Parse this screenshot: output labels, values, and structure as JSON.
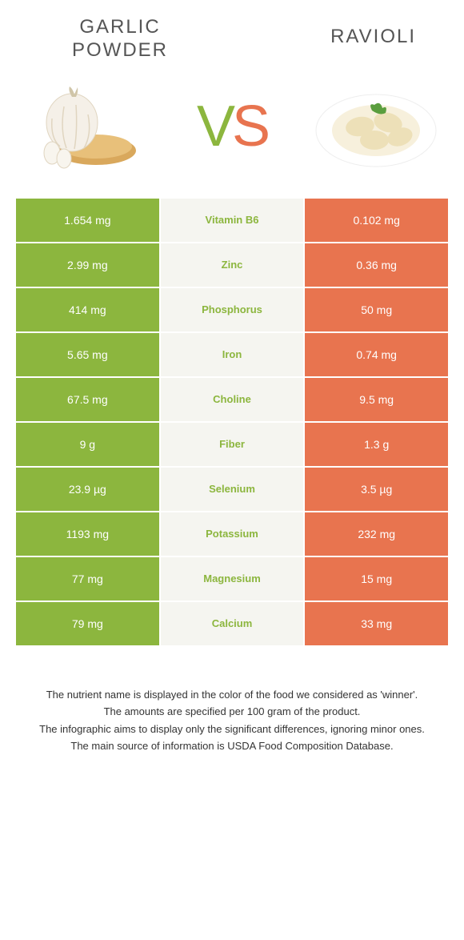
{
  "header": {
    "left_title": "Garlic powder",
    "right_title": "Ravioli",
    "vs_v": "V",
    "vs_s": "S"
  },
  "colors": {
    "left": "#8cb63e",
    "right": "#e8744f",
    "center_bg": "#f5f5f0",
    "text": "#333333"
  },
  "table": {
    "rows": [
      {
        "left": "1.654 mg",
        "nutrient": "Vitamin B6",
        "right": "0.102 mg",
        "winner": "left"
      },
      {
        "left": "2.99 mg",
        "nutrient": "Zinc",
        "right": "0.36 mg",
        "winner": "left"
      },
      {
        "left": "414 mg",
        "nutrient": "Phosphorus",
        "right": "50 mg",
        "winner": "left"
      },
      {
        "left": "5.65 mg",
        "nutrient": "Iron",
        "right": "0.74 mg",
        "winner": "left"
      },
      {
        "left": "67.5 mg",
        "nutrient": "Choline",
        "right": "9.5 mg",
        "winner": "left"
      },
      {
        "left": "9 g",
        "nutrient": "Fiber",
        "right": "1.3 g",
        "winner": "left"
      },
      {
        "left": "23.9 µg",
        "nutrient": "Selenium",
        "right": "3.5 µg",
        "winner": "left"
      },
      {
        "left": "1193 mg",
        "nutrient": "Potassium",
        "right": "232 mg",
        "winner": "left"
      },
      {
        "left": "77 mg",
        "nutrient": "Magnesium",
        "right": "15 mg",
        "winner": "left"
      },
      {
        "left": "79 mg",
        "nutrient": "Calcium",
        "right": "33 mg",
        "winner": "left"
      }
    ]
  },
  "footer": {
    "line1": "The nutrient name is displayed in the color of the food we considered as 'winner'.",
    "line2": "The amounts are specified per 100 gram of the product.",
    "line3": "The infographic aims to display only the significant differences, ignoring minor ones.",
    "line4": "The main source of information is USDA Food Composition Database."
  }
}
